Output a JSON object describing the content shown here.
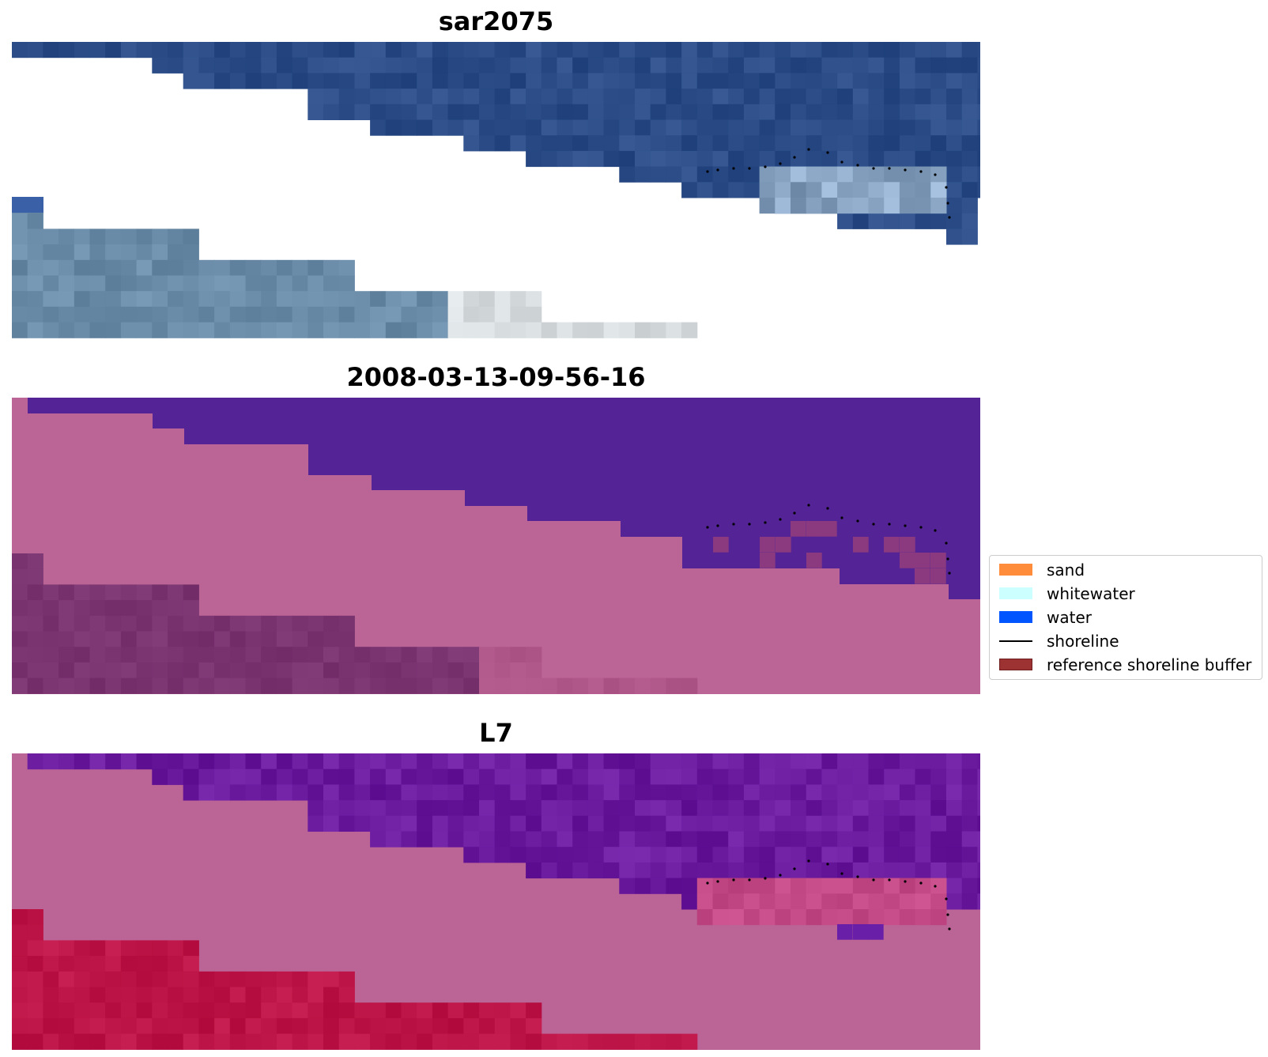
{
  "chart_data": [
    {
      "type": "heatmap",
      "title": "sar2075",
      "grid": false,
      "overlay": "shoreline (dotted)"
    },
    {
      "type": "heatmap",
      "title": "2008-03-13-09-56-16",
      "grid": false,
      "overlay": "shoreline (dotted)"
    },
    {
      "type": "heatmap",
      "title": "L7",
      "grid": false,
      "overlay": "shoreline (dotted)"
    }
  ],
  "legend": {
    "placement": "right",
    "items": [
      {
        "label": "sand",
        "color": "#ff8c3a",
        "kind": "patch"
      },
      {
        "label": "whitewater",
        "color": "#ccffff",
        "kind": "patch"
      },
      {
        "label": "water",
        "color": "#0055ff",
        "kind": "patch"
      },
      {
        "label": "shoreline",
        "color": "#000000",
        "kind": "line"
      },
      {
        "label": "reference shoreline buffer",
        "color": "#9c3232",
        "kind": "patch"
      }
    ]
  },
  "colors": {
    "sar_water": "#2b4c86",
    "sar_shallow": "#6a8ca8",
    "sar_white": "#d8dde0",
    "classified_sea": "#542496",
    "classified_land": "#bb6496",
    "classified_buffer": "#7a3470",
    "l7_sea": "#6a1b9e",
    "l7_land": "#bb6496",
    "l7_red": "#bc1446"
  }
}
